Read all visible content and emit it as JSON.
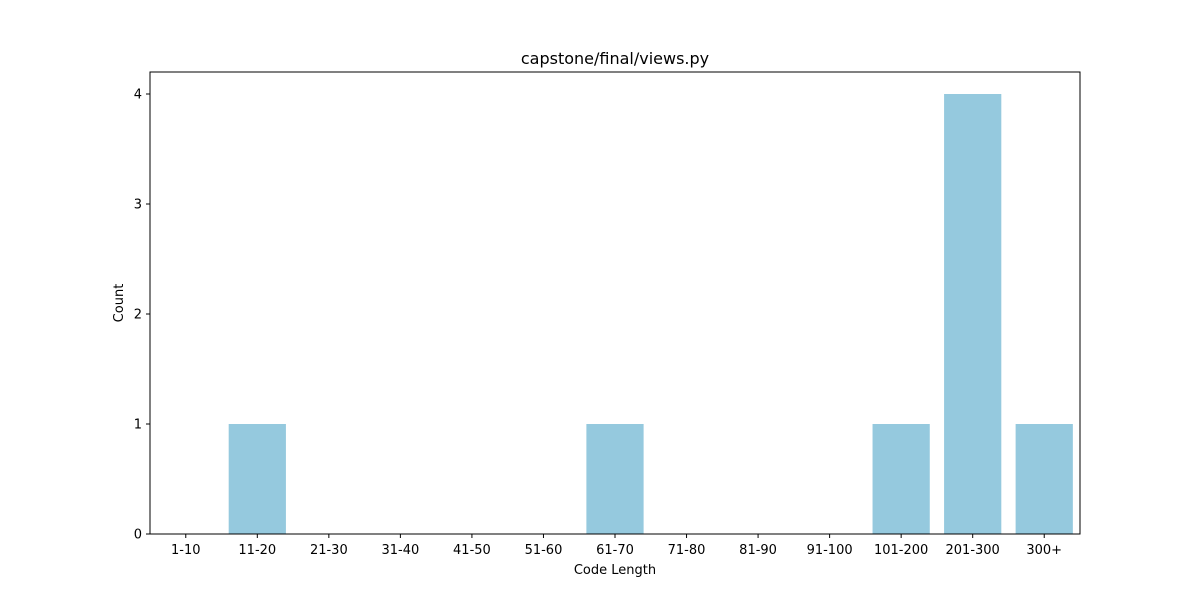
{
  "chart_data": {
    "type": "bar",
    "title": "capstone/final/views.py",
    "xlabel": "Code Length",
    "ylabel": "Count",
    "categories": [
      "1-10",
      "11-20",
      "21-30",
      "31-40",
      "41-50",
      "51-60",
      "61-70",
      "71-80",
      "81-90",
      "91-100",
      "101-200",
      "201-300",
      "300+"
    ],
    "values": [
      0,
      1,
      0,
      0,
      0,
      0,
      1,
      0,
      0,
      0,
      1,
      4,
      1
    ],
    "ylim": [
      0,
      4.2
    ],
    "yticks": [
      0,
      1,
      2,
      3,
      4
    ],
    "grid": false,
    "bar_color": "#95c9de"
  }
}
